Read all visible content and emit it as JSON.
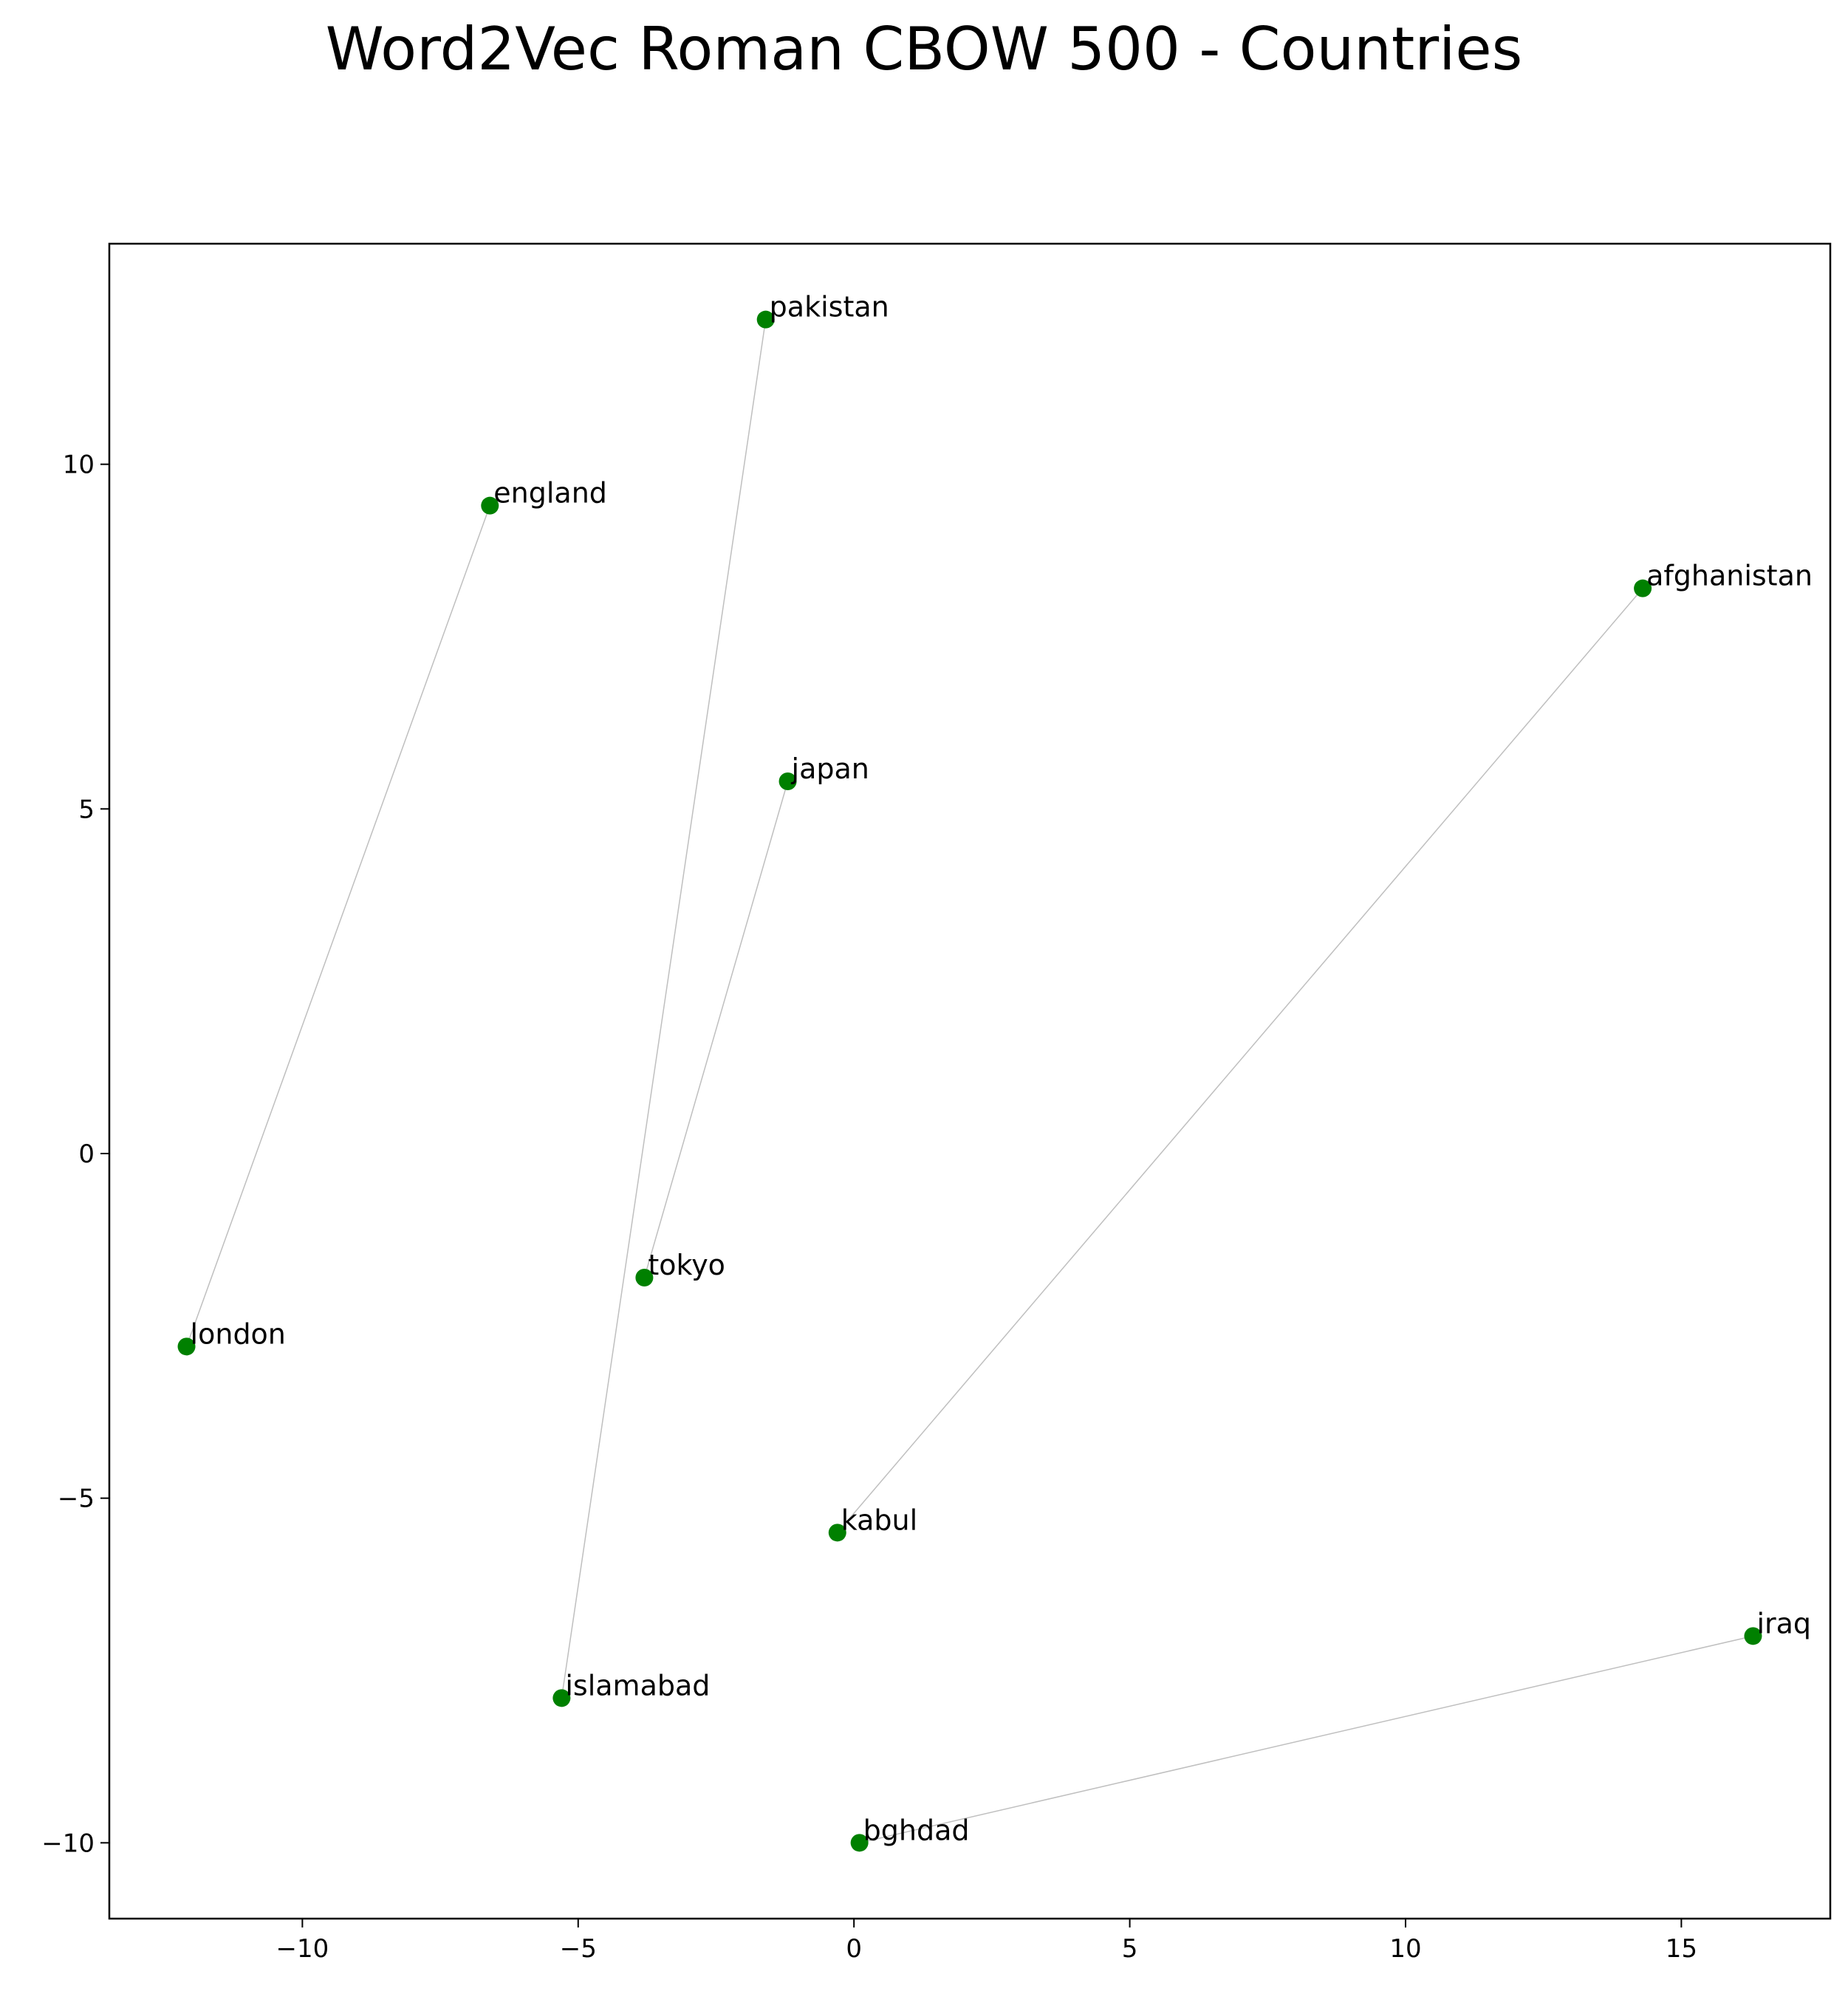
{
  "chart_data": {
    "type": "scatter",
    "title": "Word2Vec Roman CBOW 500 - Countries",
    "xlabel": "",
    "ylabel": "",
    "xlim": [
      -13.5,
      17.7
    ],
    "ylim": [
      -11.1,
      13.2
    ],
    "xticks": [
      -10,
      -5,
      0,
      5,
      10,
      15
    ],
    "yticks": [
      -10,
      -5,
      0,
      5,
      10
    ],
    "xtick_labels": [
      "−10",
      "−5",
      "0",
      "5",
      "10",
      "15"
    ],
    "ytick_labels": [
      "−10",
      "−5",
      "0",
      "5",
      "10"
    ],
    "grid": false,
    "point_color": "#008000",
    "link_color": "#bfbfbf",
    "points": [
      {
        "label": "pakistan",
        "x": -1.6,
        "y": 12.1
      },
      {
        "label": "england",
        "x": -6.6,
        "y": 9.4
      },
      {
        "label": "afghanistan",
        "x": 14.3,
        "y": 8.2
      },
      {
        "label": "japan",
        "x": -1.2,
        "y": 5.4
      },
      {
        "label": "tokyo",
        "x": -3.8,
        "y": -1.8
      },
      {
        "label": "london",
        "x": -12.1,
        "y": -2.8
      },
      {
        "label": "kabul",
        "x": -0.3,
        "y": -5.5
      },
      {
        "label": "iraq",
        "x": 16.3,
        "y": -7.0
      },
      {
        "label": "islamabad",
        "x": -5.3,
        "y": -7.9
      },
      {
        "label": "bghdad",
        "x": 0.1,
        "y": -10.0
      }
    ],
    "links": [
      [
        "pakistan",
        "islamabad"
      ],
      [
        "england",
        "london"
      ],
      [
        "afghanistan",
        "kabul"
      ],
      [
        "japan",
        "tokyo"
      ],
      [
        "iraq",
        "bghdad"
      ]
    ]
  }
}
